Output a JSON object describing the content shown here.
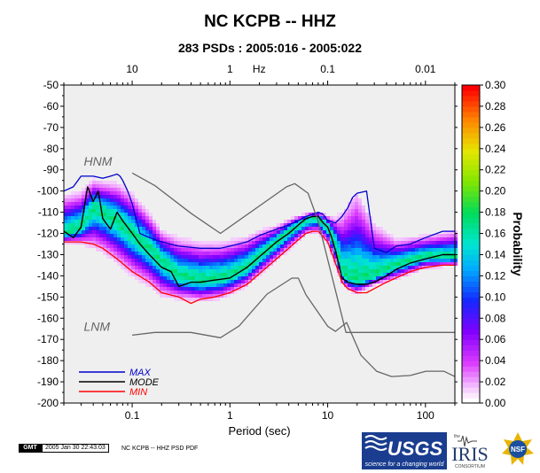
{
  "header": {
    "title": "NC KCPB -- HHZ",
    "subtitle": "283 PSDs : 2005:016 - 2005:022"
  },
  "footer": {
    "gmt_badge": "GMT",
    "timestamp": "2005 Jan 30 22:43:03",
    "caption": "NC KCPB -- HHZ PSD PDF"
  },
  "logos": {
    "usgs": "USGS",
    "usgs_tagline": "science for a changing world",
    "iris_prefix": "the",
    "iris": "IRIS",
    "iris_sub": "CONSORTIUM",
    "nsf": "NSF"
  },
  "colors": {
    "max": "#0000cc",
    "mode": "#000000",
    "min": "#ff0000",
    "noise_model": "#666666",
    "grid": "#000000"
  },
  "chart_data": {
    "type": "heatmap",
    "xlabel": "Period (sec)",
    "x_scale": "log",
    "xlim": [
      0.02,
      200
    ],
    "x_ticks": [
      {
        "value": 0.1,
        "label": "0.1"
      },
      {
        "value": 1,
        "label": "1"
      },
      {
        "value": 10,
        "label": "10"
      },
      {
        "value": 100,
        "label": "100"
      }
    ],
    "top_axis_label": "Hz",
    "top_ticks": [
      {
        "freq": 10,
        "label": "10"
      },
      {
        "freq": 1,
        "label": "1"
      },
      {
        "freq": 0.1,
        "label": "0.1"
      },
      {
        "freq": 0.01,
        "label": "0.01"
      }
    ],
    "ylim": [
      -200,
      -50
    ],
    "y_ticks": [
      -50,
      -60,
      -70,
      -80,
      -90,
      -100,
      -110,
      -120,
      -130,
      -140,
      -150,
      -160,
      -170,
      -180,
      -190,
      -200
    ],
    "grid": false,
    "colorbar": {
      "label": "Probability",
      "range": [
        0.0,
        0.3
      ],
      "ticks": [
        "0.00",
        "0.02",
        "0.04",
        "0.06",
        "0.08",
        "0.10",
        "0.12",
        "0.14",
        "0.16",
        "0.18",
        "0.20",
        "0.22",
        "0.24",
        "0.26",
        "0.28",
        "0.30"
      ]
    },
    "annotations": [
      {
        "text": "HNM",
        "x": 0.032,
        "y": -88
      },
      {
        "text": "LNM",
        "x": 0.032,
        "y": -166
      }
    ],
    "legend": {
      "placement": "bottom-left",
      "entries": [
        {
          "name": "MAX",
          "color": "#0000cc"
        },
        {
          "name": "MODE",
          "color": "#000000"
        },
        {
          "name": "MIN",
          "color": "#ff0000"
        }
      ]
    },
    "series": [
      {
        "name": "MAX",
        "color": "#0000cc",
        "x": [
          0.02,
          0.025,
          0.03,
          0.04,
          0.05,
          0.06,
          0.07,
          0.075,
          0.08,
          0.09,
          0.1,
          0.12,
          0.15,
          0.2,
          0.3,
          0.5,
          0.8,
          1,
          1.5,
          2,
          3,
          4,
          5,
          6,
          7,
          8,
          9,
          10,
          12,
          14,
          16,
          18,
          20,
          25,
          30,
          40,
          50,
          70,
          100,
          150,
          200
        ],
        "y": [
          -100,
          -98,
          -93,
          -93,
          -94,
          -93,
          -92,
          -93,
          -95,
          -100,
          -106,
          -120,
          -122,
          -124,
          -126,
          -127,
          -127,
          -126,
          -124,
          -121,
          -118,
          -116,
          -114,
          -112,
          -111,
          -110,
          -111,
          -114,
          -115,
          -112,
          -108,
          -103,
          -101,
          -100,
          -127,
          -129,
          -126,
          -125,
          -122,
          -119,
          -119
        ]
      },
      {
        "name": "MODE",
        "color": "#000000",
        "x": [
          0.02,
          0.025,
          0.03,
          0.035,
          0.04,
          0.045,
          0.05,
          0.06,
          0.07,
          0.08,
          0.1,
          0.12,
          0.15,
          0.2,
          0.25,
          0.3,
          0.4,
          0.5,
          0.7,
          1,
          1.5,
          2,
          3,
          4,
          5,
          6,
          7,
          8,
          9,
          10,
          11,
          12,
          14,
          16,
          20,
          25,
          30,
          40,
          50,
          70,
          100,
          150,
          200
        ],
        "y": [
          -119,
          -122,
          -117,
          -98,
          -105,
          -100,
          -113,
          -118,
          -110,
          -114,
          -120,
          -125,
          -130,
          -136,
          -138,
          -145,
          -143,
          -143,
          -142,
          -141,
          -136,
          -131,
          -124,
          -120,
          -116,
          -113,
          -112,
          -112,
          -115,
          -117,
          -122,
          -128,
          -141,
          -143,
          -144,
          -144,
          -143,
          -140,
          -137,
          -134,
          -132,
          -130,
          -130
        ]
      },
      {
        "name": "MIN",
        "color": "#ff0000",
        "x": [
          0.02,
          0.03,
          0.04,
          0.05,
          0.07,
          0.1,
          0.15,
          0.2,
          0.3,
          0.4,
          0.5,
          0.7,
          1,
          1.5,
          2,
          3,
          4,
          5,
          6,
          7,
          8,
          10,
          12,
          14,
          16,
          20,
          25,
          30,
          40,
          50,
          70,
          100,
          150,
          200
        ],
        "y": [
          -124,
          -124,
          -125,
          -127,
          -132,
          -138,
          -143,
          -148,
          -150,
          -153,
          -151,
          -150,
          -148,
          -144,
          -139,
          -132,
          -127,
          -123,
          -120,
          -119,
          -119,
          -124,
          -134,
          -143,
          -146,
          -148,
          -148,
          -146,
          -143,
          -141,
          -138,
          -136,
          -135,
          -135
        ]
      },
      {
        "name": "",
        "color": "#666666",
        "x": [
          0.1,
          0.17,
          0.4,
          0.8,
          3.8,
          4.6,
          6.3,
          7.9,
          15.4,
          20,
          354.8
        ],
        "y": [
          -91.5,
          -97.4,
          -110.5,
          -120.0,
          -98.0,
          -96.5,
          -101.0,
          -113.5,
          -166.7,
          -166.7,
          -166.7
        ]
      },
      {
        "name": "",
        "color": "#666666",
        "x": [
          0.1,
          0.17,
          0.4,
          0.8,
          1.24,
          2.4,
          4.3,
          5,
          6,
          10,
          12,
          15.6,
          21.9,
          31.6,
          45,
          70,
          101,
          154,
          328
        ],
        "y": [
          -168.0,
          -166.7,
          -166.7,
          -169.2,
          -163.7,
          -148.6,
          -141.1,
          -141.1,
          -149.0,
          -163.8,
          -166.2,
          -162.0,
          -177.5,
          -185.0,
          -187.5,
          -187.0,
          -185.0,
          -185.0,
          -187.5
        ]
      }
    ],
    "density_band": {
      "x": [
        0.02,
        0.03,
        0.04,
        0.05,
        0.07,
        0.1,
        0.15,
        0.2,
        0.3,
        0.5,
        0.8,
        1,
        1.5,
        2,
        3,
        4,
        5,
        6,
        7,
        8,
        10,
        12,
        14,
        16,
        20,
        30,
        50,
        100,
        200
      ],
      "center": [
        -120,
        -117,
        -108,
        -110,
        -114,
        -120,
        -127,
        -133,
        -140,
        -142,
        -141,
        -140,
        -136,
        -131,
        -124,
        -119,
        -116,
        -114,
        -113,
        -113,
        -117,
        -125,
        -138,
        -141,
        -142,
        -140,
        -135,
        -131,
        -131
      ],
      "upper": [
        -104,
        -102,
        -96,
        -97,
        -98,
        -103,
        -112,
        -120,
        -124,
        -126,
        -126,
        -125,
        -123,
        -120,
        -117,
        -114,
        -112,
        -111,
        -110,
        -110,
        -112,
        -114,
        -113,
        -109,
        -104,
        -118,
        -124,
        -122,
        -120
      ],
      "lower": [
        -124,
        -124,
        -125,
        -127,
        -132,
        -138,
        -143,
        -148,
        -150,
        -151,
        -150,
        -148,
        -144,
        -139,
        -132,
        -127,
        -123,
        -120,
        -119,
        -119,
        -124,
        -134,
        -143,
        -146,
        -148,
        -144,
        -141,
        -136,
        -135
      ]
    }
  }
}
